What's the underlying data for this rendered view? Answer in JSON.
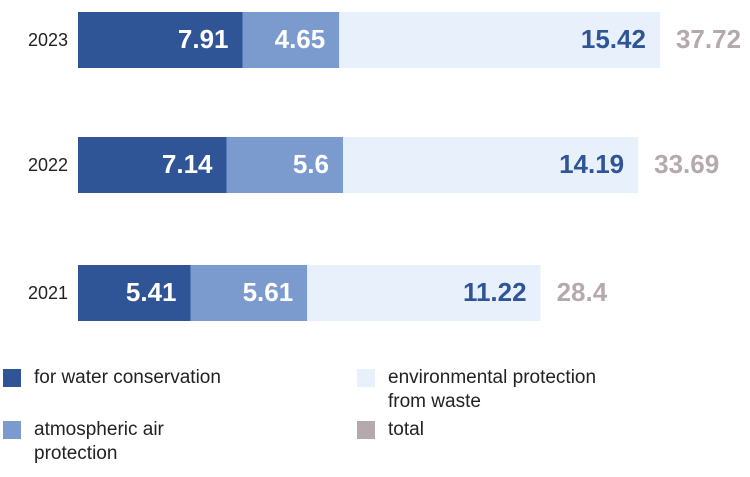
{
  "chart_data": {
    "type": "stacked-bar-horizontal",
    "categories": [
      "2023",
      "2022",
      "2021"
    ],
    "series": [
      {
        "name": "for water conservation",
        "color": "#2f5597",
        "values": [
          7.91,
          7.14,
          5.41
        ]
      },
      {
        "name": "atmospheric air protection",
        "color": "#7b9bcf",
        "values": [
          4.65,
          5.6,
          5.61
        ]
      },
      {
        "name": "environmental protection from waste",
        "color": "#e8f0fb",
        "values": [
          15.42,
          14.19,
          11.22
        ]
      },
      {
        "name": "total",
        "color": "#b5a9ad",
        "values": [
          37.72,
          33.69,
          28.4
        ]
      }
    ]
  }
}
